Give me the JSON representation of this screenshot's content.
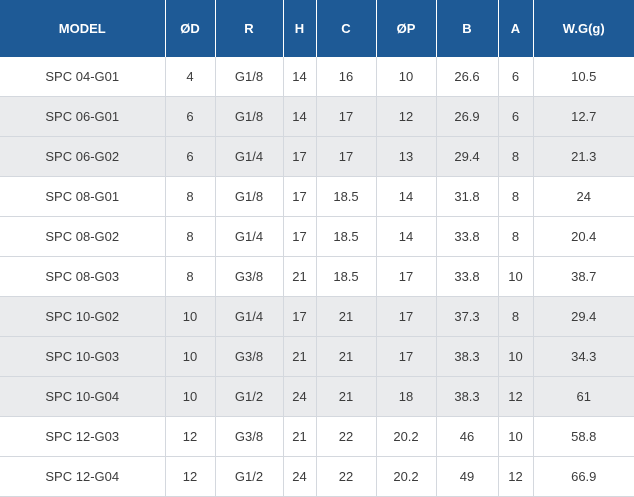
{
  "table": {
    "headers": [
      "MODEL",
      "ØD",
      "R",
      "H",
      "C",
      "ØP",
      "B",
      "A",
      "W.G(g)"
    ],
    "rows": [
      [
        "SPC 04-G01",
        "4",
        "G1/8",
        "14",
        "16",
        "10",
        "26.6",
        "6",
        "10.5"
      ],
      [
        "SPC 06-G01",
        "6",
        "G1/8",
        "14",
        "17",
        "12",
        "26.9",
        "6",
        "12.7"
      ],
      [
        "SPC 06-G02",
        "6",
        "G1/4",
        "17",
        "17",
        "13",
        "29.4",
        "8",
        "21.3"
      ],
      [
        "SPC 08-G01",
        "8",
        "G1/8",
        "17",
        "18.5",
        "14",
        "31.8",
        "8",
        "24"
      ],
      [
        "SPC 08-G02",
        "8",
        "G1/4",
        "17",
        "18.5",
        "14",
        "33.8",
        "8",
        "20.4"
      ],
      [
        "SPC 08-G03",
        "8",
        "G3/8",
        "21",
        "18.5",
        "17",
        "33.8",
        "10",
        "38.7"
      ],
      [
        "SPC 10-G02",
        "10",
        "G1/4",
        "17",
        "21",
        "17",
        "37.3",
        "8",
        "29.4"
      ],
      [
        "SPC 10-G03",
        "10",
        "G3/8",
        "21",
        "21",
        "17",
        "38.3",
        "10",
        "34.3"
      ],
      [
        "SPC 10-G04",
        "10",
        "G1/2",
        "24",
        "21",
        "18",
        "38.3",
        "12",
        "61"
      ],
      [
        "SPC 12-G03",
        "12",
        "G3/8",
        "21",
        "22",
        "20.2",
        "46",
        "10",
        "58.8"
      ],
      [
        "SPC 12-G04",
        "12",
        "G1/2",
        "24",
        "22",
        "20.2",
        "49",
        "12",
        "66.9"
      ]
    ],
    "shaded_rows": [
      1,
      2,
      6,
      7,
      8
    ]
  },
  "colors": {
    "header_bg": "#1e5a96",
    "header_text": "#ffffff",
    "shaded_row_bg": "#eaebed",
    "plain_row_bg": "#ffffff",
    "cell_text": "#3c3c3c"
  }
}
